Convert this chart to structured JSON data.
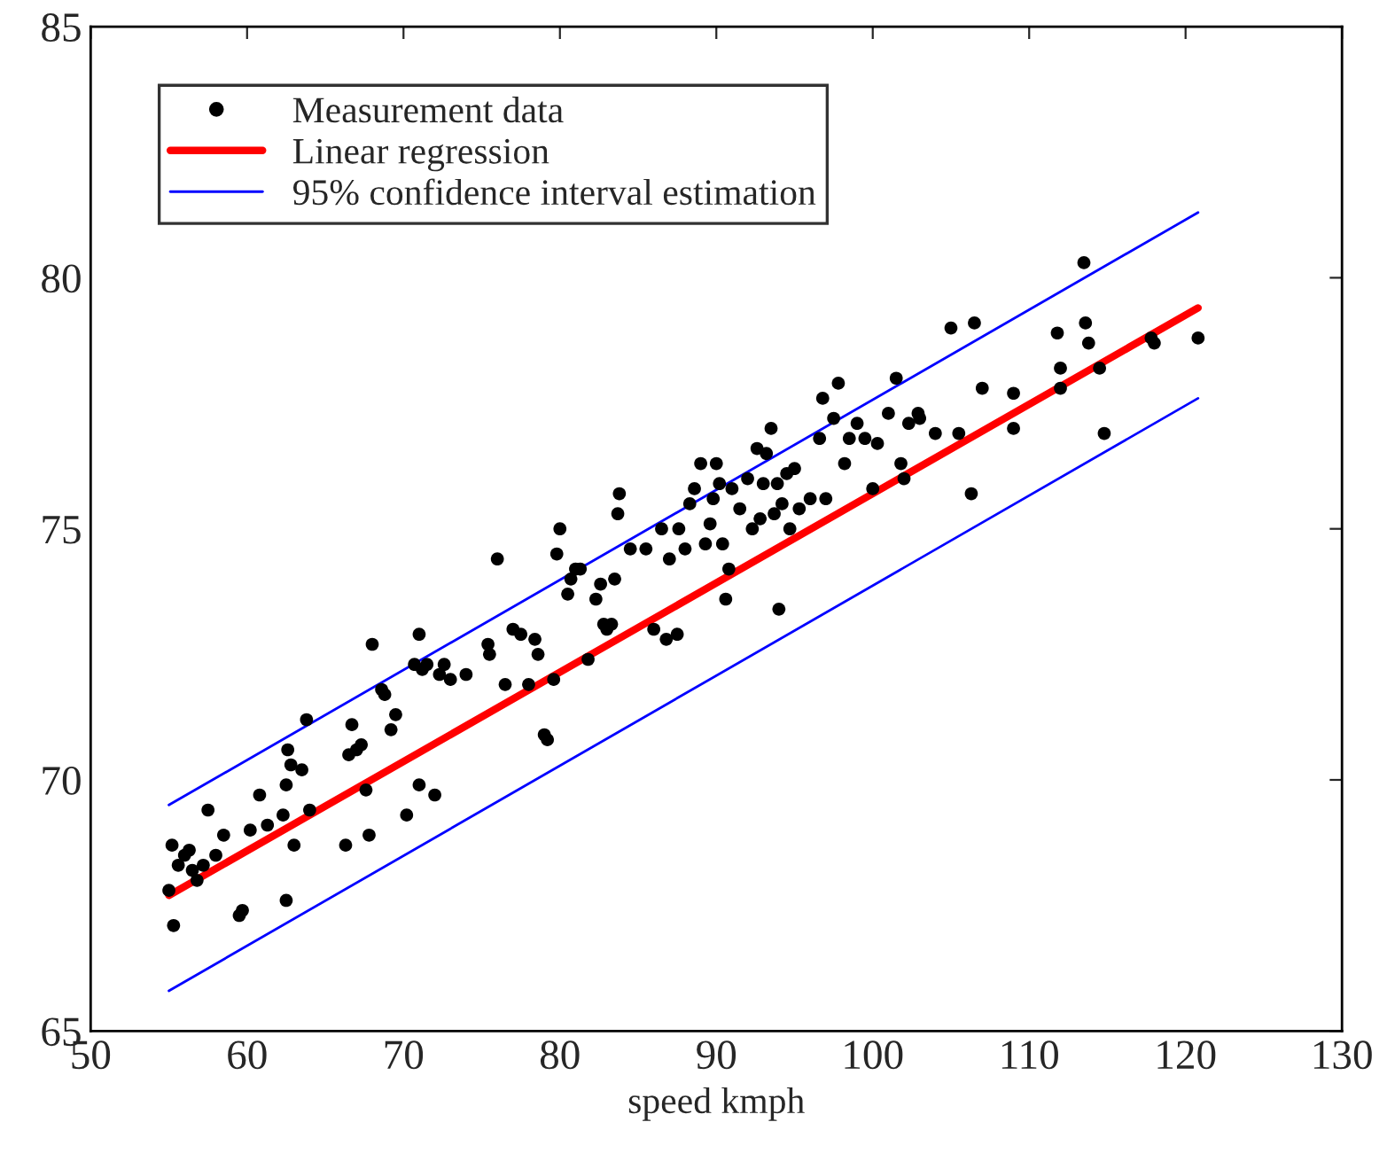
{
  "chart_data": {
    "type": "scatter",
    "xlabel": "speed kmph",
    "xlim": [
      50,
      130
    ],
    "ylim": [
      65,
      85
    ],
    "xticks": [
      50,
      60,
      70,
      80,
      90,
      100,
      110,
      120,
      130
    ],
    "yticks": [
      65,
      70,
      75,
      80,
      85
    ],
    "legend": "top left",
    "grid": false,
    "series": [
      {
        "name": "Measurement data",
        "color": "#000000",
        "marker": "circle",
        "x": [
          55,
          55.3,
          55.2,
          55.6,
          56,
          56.3,
          56.5,
          56.8,
          57.2,
          57.5,
          58,
          58.5,
          59.5,
          59.7,
          60.2,
          60.8,
          61.3,
          62.3,
          62.5,
          62.6,
          62.8,
          62.5,
          63,
          63.5,
          63.8,
          64,
          66.3,
          66.5,
          66.7,
          67,
          67.3,
          67.6,
          67.8,
          68,
          68.6,
          68.8,
          69.2,
          69.5,
          70.2,
          70.7,
          71,
          71.2,
          71,
          71.5,
          72,
          72.3,
          72.6,
          73,
          74,
          75.4,
          75.5,
          76,
          76.5,
          77,
          77.5,
          78,
          78.4,
          78.6,
          79,
          79.2,
          79.6,
          79.8,
          80,
          80.5,
          80.7,
          81,
          81.3,
          81.8,
          82.3,
          82.6,
          82.8,
          83,
          83.3,
          83.5,
          83.7,
          83.8,
          84.5,
          85.5,
          86,
          86.5,
          86.8,
          87,
          87.5,
          87.6,
          88,
          88.3,
          88.6,
          89,
          89.3,
          89.6,
          89.8,
          90,
          90.2,
          90.4,
          90.6,
          90.8,
          91,
          91.5,
          92,
          92.3,
          92.6,
          92.8,
          93,
          93.2,
          93.5,
          93.7,
          93.9,
          94,
          94.2,
          94.5,
          94.7,
          95,
          95.3,
          96,
          96.6,
          96.8,
          97,
          97.5,
          97.8,
          98.2,
          98.5,
          99,
          99.5,
          100,
          100.3,
          101,
          101.5,
          101.8,
          102,
          102.3,
          102.9,
          103,
          104,
          105,
          105.5,
          106.3,
          106.5,
          107,
          109,
          109,
          111.8,
          112,
          112,
          113.5,
          113.6,
          113.8,
          114.5,
          114.8,
          117.8,
          118,
          120.8
        ],
        "values": [
          67.8,
          67.1,
          68.7,
          68.3,
          68.5,
          68.6,
          68.2,
          68,
          68.3,
          69.4,
          68.5,
          68.9,
          67.3,
          67.4,
          69,
          69.7,
          69.1,
          69.3,
          69.9,
          70.6,
          70.3,
          67.6,
          68.7,
          70.2,
          71.2,
          69.4,
          68.7,
          70.5,
          71.1,
          70.6,
          70.7,
          69.8,
          68.9,
          72.7,
          71.8,
          71.7,
          71,
          71.3,
          69.3,
          72.3,
          72.9,
          72.2,
          69.9,
          72.3,
          69.7,
          72.1,
          72.3,
          72,
          72.1,
          72.7,
          72.5,
          74.4,
          71.9,
          73,
          72.9,
          71.9,
          72.8,
          72.5,
          70.9,
          70.8,
          72,
          74.5,
          75,
          73.7,
          74,
          74.2,
          74.2,
          72.4,
          73.6,
          73.9,
          73.1,
          73,
          73.1,
          74,
          75.3,
          75.7,
          74.6,
          74.6,
          73,
          75,
          72.8,
          74.4,
          72.9,
          75,
          74.6,
          75.5,
          75.8,
          76.3,
          74.7,
          75.1,
          75.6,
          76.3,
          75.9,
          74.7,
          73.6,
          74.2,
          75.8,
          75.4,
          76,
          75,
          76.6,
          75.2,
          75.9,
          76.5,
          77,
          75.3,
          75.9,
          73.4,
          75.5,
          76.1,
          75,
          76.2,
          75.4,
          75.6,
          76.8,
          77.6,
          75.6,
          77.2,
          77.9,
          76.3,
          76.8,
          77.1,
          76.8,
          75.8,
          76.7,
          77.3,
          78,
          76.3,
          76,
          77.1,
          77.3,
          77.2,
          76.9,
          79,
          76.9,
          75.7,
          79.1,
          77.8,
          77.7,
          77,
          78.9,
          78.2,
          77.8,
          80.3,
          79.1,
          78.7,
          78.2,
          76.9,
          78.8,
          78.7,
          78.8
        ]
      },
      {
        "name": "Linear regression",
        "type": "line",
        "color": "#ff0000",
        "x": [
          55,
          120.8
        ],
        "values": [
          67.7,
          79.4
        ]
      },
      {
        "name": "95% confidence interval estimation",
        "type": "line",
        "color": "#0000ff",
        "x": [
          55,
          120.8
        ],
        "values": [
          69.5,
          81.3
        ]
      },
      {
        "type": "line",
        "color": "#0000ff",
        "x": [
          55,
          120.8
        ],
        "values": [
          65.8,
          77.6
        ]
      }
    ]
  }
}
